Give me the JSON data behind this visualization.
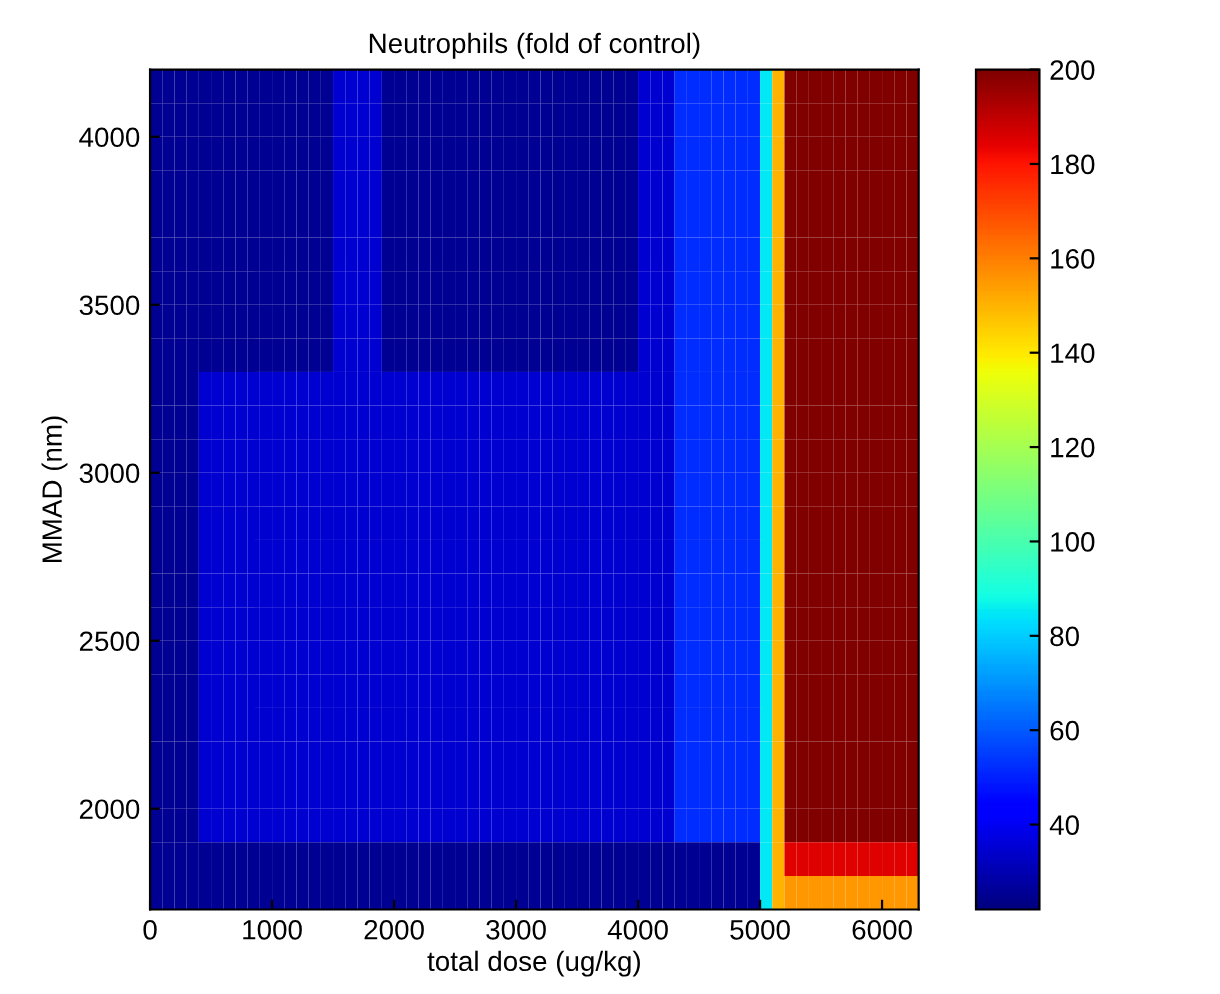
{
  "chart_data": {
    "type": "heatmap",
    "title": "Neutrophils (fold of control)",
    "xlabel": "total dose (ug/kg)",
    "ylabel": "MMAD (nm)",
    "cells": [
      [
        25,
        25,
        25,
        25,
        25,
        25,
        25,
        25,
        25,
        25,
        25,
        25,
        25,
        25,
        25,
        35,
        35,
        35,
        35,
        25,
        25,
        25,
        25,
        25,
        25,
        25,
        25,
        25,
        25,
        25,
        25,
        25,
        25,
        25,
        25,
        25,
        25,
        25,
        25,
        25,
        35,
        35,
        35,
        52,
        52,
        52,
        52,
        52,
        52,
        52,
        85,
        150,
        200,
        200,
        200,
        200,
        200,
        200,
        200,
        200,
        200,
        200,
        200
      ],
      [
        25,
        25,
        25,
        25,
        25,
        25,
        25,
        25,
        25,
        25,
        25,
        25,
        25,
        25,
        25,
        35,
        35,
        35,
        35,
        25,
        25,
        25,
        25,
        25,
        25,
        25,
        25,
        25,
        25,
        25,
        25,
        25,
        25,
        25,
        25,
        25,
        25,
        25,
        25,
        25,
        35,
        35,
        35,
        52,
        52,
        52,
        52,
        52,
        52,
        52,
        85,
        150,
        200,
        200,
        200,
        200,
        200,
        200,
        200,
        200,
        200,
        200,
        200
      ],
      [
        25,
        25,
        25,
        25,
        25,
        25,
        25,
        25,
        25,
        25,
        25,
        25,
        25,
        25,
        25,
        35,
        35,
        35,
        35,
        25,
        25,
        25,
        25,
        25,
        25,
        25,
        25,
        25,
        25,
        25,
        25,
        25,
        25,
        25,
        25,
        25,
        25,
        25,
        25,
        25,
        35,
        35,
        35,
        52,
        52,
        52,
        52,
        52,
        52,
        52,
        85,
        150,
        200,
        200,
        200,
        200,
        200,
        200,
        200,
        200,
        200,
        200,
        200
      ],
      [
        25,
        25,
        25,
        25,
        25,
        25,
        25,
        25,
        25,
        25,
        25,
        25,
        25,
        25,
        25,
        35,
        35,
        35,
        35,
        25,
        25,
        25,
        25,
        25,
        25,
        25,
        25,
        25,
        25,
        25,
        25,
        25,
        25,
        25,
        25,
        25,
        25,
        25,
        25,
        25,
        35,
        35,
        35,
        52,
        52,
        52,
        52,
        52,
        52,
        52,
        85,
        150,
        200,
        200,
        200,
        200,
        200,
        200,
        200,
        200,
        200,
        200,
        200
      ],
      [
        25,
        25,
        25,
        25,
        25,
        25,
        25,
        25,
        25,
        25,
        25,
        25,
        25,
        25,
        25,
        35,
        35,
        35,
        35,
        25,
        25,
        25,
        25,
        25,
        25,
        25,
        25,
        25,
        25,
        25,
        25,
        25,
        25,
        25,
        25,
        25,
        25,
        25,
        25,
        25,
        35,
        35,
        35,
        52,
        52,
        52,
        52,
        52,
        52,
        52,
        85,
        150,
        200,
        200,
        200,
        200,
        200,
        200,
        200,
        200,
        200,
        200,
        200
      ],
      [
        25,
        25,
        25,
        25,
        25,
        25,
        25,
        25,
        25,
        25,
        25,
        25,
        25,
        25,
        25,
        35,
        35,
        35,
        35,
        25,
        25,
        25,
        25,
        25,
        25,
        25,
        25,
        25,
        25,
        25,
        25,
        25,
        25,
        25,
        25,
        25,
        25,
        25,
        25,
        25,
        35,
        35,
        35,
        52,
        52,
        52,
        52,
        52,
        52,
        52,
        85,
        150,
        200,
        200,
        200,
        200,
        200,
        200,
        200,
        200,
        200,
        200,
        200
      ],
      [
        25,
        25,
        25,
        25,
        25,
        25,
        25,
        25,
        25,
        25,
        25,
        25,
        25,
        25,
        25,
        35,
        35,
        35,
        35,
        25,
        25,
        25,
        25,
        25,
        25,
        25,
        25,
        25,
        25,
        25,
        25,
        25,
        25,
        25,
        25,
        25,
        25,
        25,
        25,
        25,
        35,
        35,
        35,
        52,
        52,
        52,
        52,
        52,
        52,
        52,
        85,
        150,
        200,
        200,
        200,
        200,
        200,
        200,
        200,
        200,
        200,
        200,
        200
      ],
      [
        25,
        25,
        25,
        25,
        25,
        25,
        25,
        25,
        25,
        25,
        25,
        25,
        25,
        25,
        25,
        35,
        35,
        35,
        35,
        25,
        25,
        25,
        25,
        25,
        25,
        25,
        25,
        25,
        25,
        25,
        25,
        25,
        25,
        25,
        25,
        25,
        25,
        25,
        25,
        25,
        35,
        35,
        35,
        52,
        52,
        52,
        52,
        52,
        52,
        52,
        85,
        150,
        200,
        200,
        200,
        200,
        200,
        200,
        200,
        200,
        200,
        200,
        200
      ],
      [
        25,
        25,
        25,
        25,
        25,
        25,
        25,
        25,
        25,
        25,
        25,
        25,
        25,
        25,
        25,
        35,
        35,
        35,
        35,
        25,
        25,
        25,
        25,
        25,
        25,
        25,
        25,
        25,
        25,
        25,
        25,
        25,
        25,
        25,
        25,
        25,
        25,
        25,
        25,
        25,
        35,
        35,
        35,
        52,
        52,
        52,
        52,
        52,
        52,
        52,
        85,
        150,
        200,
        200,
        200,
        200,
        200,
        200,
        200,
        200,
        200,
        200,
        200
      ],
      [
        25,
        25,
        25,
        25,
        35,
        35,
        35,
        35,
        35,
        35,
        35,
        35,
        35,
        35,
        35,
        35,
        35,
        35,
        35,
        35,
        35,
        35,
        35,
        35,
        35,
        35,
        35,
        35,
        35,
        35,
        35,
        35,
        35,
        35,
        35,
        35,
        35,
        35,
        35,
        35,
        35,
        35,
        35,
        52,
        52,
        52,
        52,
        52,
        52,
        52,
        85,
        150,
        200,
        200,
        200,
        200,
        200,
        200,
        200,
        200,
        200,
        200,
        200
      ],
      [
        25,
        25,
        25,
        25,
        35,
        35,
        35,
        35,
        35,
        35,
        35,
        35,
        35,
        35,
        35,
        35,
        35,
        35,
        35,
        35,
        35,
        35,
        35,
        35,
        35,
        35,
        35,
        35,
        35,
        35,
        35,
        35,
        35,
        35,
        35,
        35,
        35,
        35,
        35,
        35,
        35,
        35,
        35,
        52,
        52,
        52,
        52,
        52,
        52,
        52,
        85,
        150,
        200,
        200,
        200,
        200,
        200,
        200,
        200,
        200,
        200,
        200,
        200
      ],
      [
        25,
        25,
        25,
        25,
        35,
        35,
        35,
        35,
        35,
        35,
        35,
        35,
        35,
        35,
        35,
        35,
        35,
        35,
        35,
        35,
        35,
        35,
        35,
        35,
        35,
        35,
        35,
        35,
        35,
        35,
        35,
        35,
        35,
        35,
        35,
        35,
        35,
        35,
        35,
        35,
        35,
        35,
        35,
        52,
        52,
        52,
        52,
        52,
        52,
        52,
        85,
        150,
        200,
        200,
        200,
        200,
        200,
        200,
        200,
        200,
        200,
        200,
        200
      ],
      [
        25,
        25,
        25,
        25,
        35,
        35,
        35,
        35,
        35,
        35,
        35,
        35,
        35,
        35,
        35,
        35,
        35,
        35,
        35,
        35,
        35,
        35,
        35,
        35,
        35,
        35,
        35,
        35,
        35,
        35,
        35,
        35,
        35,
        35,
        35,
        35,
        35,
        35,
        35,
        35,
        35,
        35,
        35,
        52,
        52,
        52,
        52,
        52,
        52,
        52,
        85,
        150,
        200,
        200,
        200,
        200,
        200,
        200,
        200,
        200,
        200,
        200,
        200
      ],
      [
        25,
        25,
        25,
        25,
        35,
        35,
        35,
        35,
        35,
        35,
        35,
        35,
        35,
        35,
        35,
        35,
        35,
        35,
        35,
        35,
        35,
        35,
        35,
        35,
        35,
        35,
        35,
        35,
        35,
        35,
        35,
        35,
        35,
        35,
        35,
        35,
        35,
        35,
        35,
        35,
        35,
        35,
        35,
        52,
        52,
        52,
        52,
        52,
        52,
        52,
        85,
        150,
        200,
        200,
        200,
        200,
        200,
        200,
        200,
        200,
        200,
        200,
        200
      ],
      [
        25,
        25,
        25,
        25,
        35,
        35,
        35,
        35,
        35,
        35,
        35,
        35,
        35,
        35,
        35,
        35,
        35,
        35,
        35,
        35,
        35,
        35,
        35,
        35,
        35,
        35,
        35,
        35,
        35,
        35,
        35,
        35,
        35,
        35,
        35,
        35,
        35,
        35,
        35,
        35,
        35,
        35,
        35,
        52,
        52,
        52,
        52,
        52,
        52,
        52,
        85,
        150,
        200,
        200,
        200,
        200,
        200,
        200,
        200,
        200,
        200,
        200,
        200
      ],
      [
        25,
        25,
        25,
        25,
        35,
        35,
        35,
        35,
        35,
        35,
        35,
        35,
        35,
        35,
        35,
        35,
        35,
        35,
        35,
        35,
        35,
        35,
        35,
        35,
        35,
        35,
        35,
        35,
        35,
        35,
        35,
        35,
        35,
        35,
        35,
        35,
        35,
        35,
        35,
        35,
        35,
        35,
        35,
        52,
        52,
        52,
        52,
        52,
        52,
        52,
        85,
        150,
        200,
        200,
        200,
        200,
        200,
        200,
        200,
        200,
        200,
        200,
        200
      ],
      [
        25,
        25,
        25,
        25,
        35,
        35,
        35,
        35,
        35,
        35,
        35,
        35,
        35,
        35,
        35,
        35,
        35,
        35,
        35,
        35,
        35,
        35,
        35,
        35,
        35,
        35,
        35,
        35,
        35,
        35,
        35,
        35,
        35,
        35,
        35,
        35,
        35,
        35,
        35,
        35,
        35,
        35,
        35,
        52,
        52,
        52,
        52,
        52,
        52,
        52,
        85,
        150,
        200,
        200,
        200,
        200,
        200,
        200,
        200,
        200,
        200,
        200,
        200
      ],
      [
        25,
        25,
        25,
        25,
        35,
        35,
        35,
        35,
        35,
        35,
        35,
        35,
        35,
        35,
        35,
        35,
        35,
        35,
        35,
        35,
        35,
        35,
        35,
        35,
        35,
        35,
        35,
        35,
        35,
        35,
        35,
        35,
        35,
        35,
        35,
        35,
        35,
        35,
        35,
        35,
        35,
        35,
        35,
        52,
        52,
        52,
        52,
        52,
        52,
        52,
        85,
        150,
        200,
        200,
        200,
        200,
        200,
        200,
        200,
        200,
        200,
        200,
        200
      ],
      [
        25,
        25,
        25,
        25,
        35,
        35,
        35,
        35,
        35,
        35,
        35,
        35,
        35,
        35,
        35,
        35,
        35,
        35,
        35,
        35,
        35,
        35,
        35,
        35,
        35,
        35,
        35,
        35,
        35,
        35,
        35,
        35,
        35,
        35,
        35,
        35,
        35,
        35,
        35,
        35,
        35,
        35,
        35,
        52,
        52,
        52,
        52,
        52,
        52,
        52,
        85,
        150,
        200,
        200,
        200,
        200,
        200,
        200,
        200,
        200,
        200,
        200,
        200
      ],
      [
        25,
        25,
        25,
        25,
        35,
        35,
        35,
        35,
        35,
        35,
        35,
        35,
        35,
        35,
        35,
        35,
        35,
        35,
        35,
        35,
        35,
        35,
        35,
        35,
        35,
        35,
        35,
        35,
        35,
        35,
        35,
        35,
        35,
        35,
        35,
        35,
        35,
        35,
        35,
        35,
        35,
        35,
        35,
        52,
        52,
        52,
        52,
        52,
        52,
        52,
        85,
        150,
        200,
        200,
        200,
        200,
        200,
        200,
        200,
        200,
        200,
        200,
        200
      ],
      [
        25,
        25,
        25,
        25,
        35,
        35,
        35,
        35,
        35,
        35,
        35,
        35,
        35,
        35,
        35,
        35,
        35,
        35,
        35,
        35,
        35,
        35,
        35,
        35,
        35,
        35,
        35,
        35,
        35,
        35,
        35,
        35,
        35,
        35,
        35,
        35,
        35,
        35,
        35,
        35,
        35,
        35,
        35,
        52,
        52,
        52,
        52,
        52,
        52,
        52,
        85,
        150,
        200,
        200,
        200,
        200,
        200,
        200,
        200,
        200,
        200,
        200,
        200
      ],
      [
        25,
        25,
        25,
        25,
        35,
        35,
        35,
        35,
        35,
        35,
        35,
        35,
        35,
        35,
        35,
        35,
        35,
        35,
        35,
        35,
        35,
        35,
        35,
        35,
        35,
        35,
        35,
        35,
        35,
        35,
        35,
        35,
        35,
        35,
        35,
        35,
        35,
        35,
        35,
        35,
        35,
        35,
        35,
        52,
        52,
        52,
        52,
        52,
        52,
        52,
        85,
        150,
        200,
        200,
        200,
        200,
        200,
        200,
        200,
        200,
        200,
        200,
        200
      ],
      [
        25,
        25,
        25,
        25,
        35,
        35,
        35,
        35,
        35,
        35,
        35,
        35,
        35,
        35,
        35,
        35,
        35,
        35,
        35,
        35,
        35,
        35,
        35,
        35,
        35,
        35,
        35,
        35,
        35,
        35,
        35,
        35,
        35,
        35,
        35,
        35,
        35,
        35,
        35,
        35,
        35,
        35,
        35,
        52,
        52,
        52,
        52,
        52,
        52,
        52,
        85,
        150,
        200,
        200,
        200,
        200,
        200,
        200,
        200,
        200,
        200,
        200,
        200
      ],
      [
        25,
        25,
        25,
        25,
        25,
        25,
        25,
        25,
        25,
        25,
        25,
        25,
        25,
        25,
        25,
        25,
        25,
        25,
        25,
        25,
        25,
        25,
        25,
        25,
        25,
        25,
        25,
        25,
        25,
        25,
        25,
        25,
        25,
        25,
        25,
        25,
        25,
        25,
        25,
        25,
        25,
        25,
        25,
        25,
        25,
        25,
        25,
        25,
        25,
        25,
        85,
        150,
        185,
        185,
        185,
        185,
        185,
        185,
        185,
        185,
        185,
        185,
        185
      ],
      [
        25,
        25,
        25,
        25,
        25,
        25,
        25,
        25,
        25,
        25,
        25,
        25,
        25,
        25,
        25,
        25,
        25,
        25,
        25,
        25,
        25,
        25,
        25,
        25,
        25,
        25,
        25,
        25,
        25,
        25,
        25,
        25,
        25,
        25,
        25,
        25,
        25,
        25,
        25,
        25,
        25,
        25,
        25,
        25,
        25,
        25,
        25,
        25,
        25,
        25,
        85,
        150,
        155,
        155,
        155,
        155,
        155,
        155,
        155,
        155,
        155,
        155,
        155
      ]
    ],
    "xlim": [
      0,
      6300
    ],
    "xticks": [
      0,
      1000,
      2000,
      3000,
      4000,
      5000,
      6000
    ],
    "ylim": [
      1700,
      4200
    ],
    "yticks": [
      2000,
      2500,
      3000,
      3500,
      4000
    ],
    "clim": [
      22,
      200
    ],
    "cticks": [
      40,
      60,
      80,
      100,
      120,
      140,
      160,
      180,
      200
    ]
  }
}
